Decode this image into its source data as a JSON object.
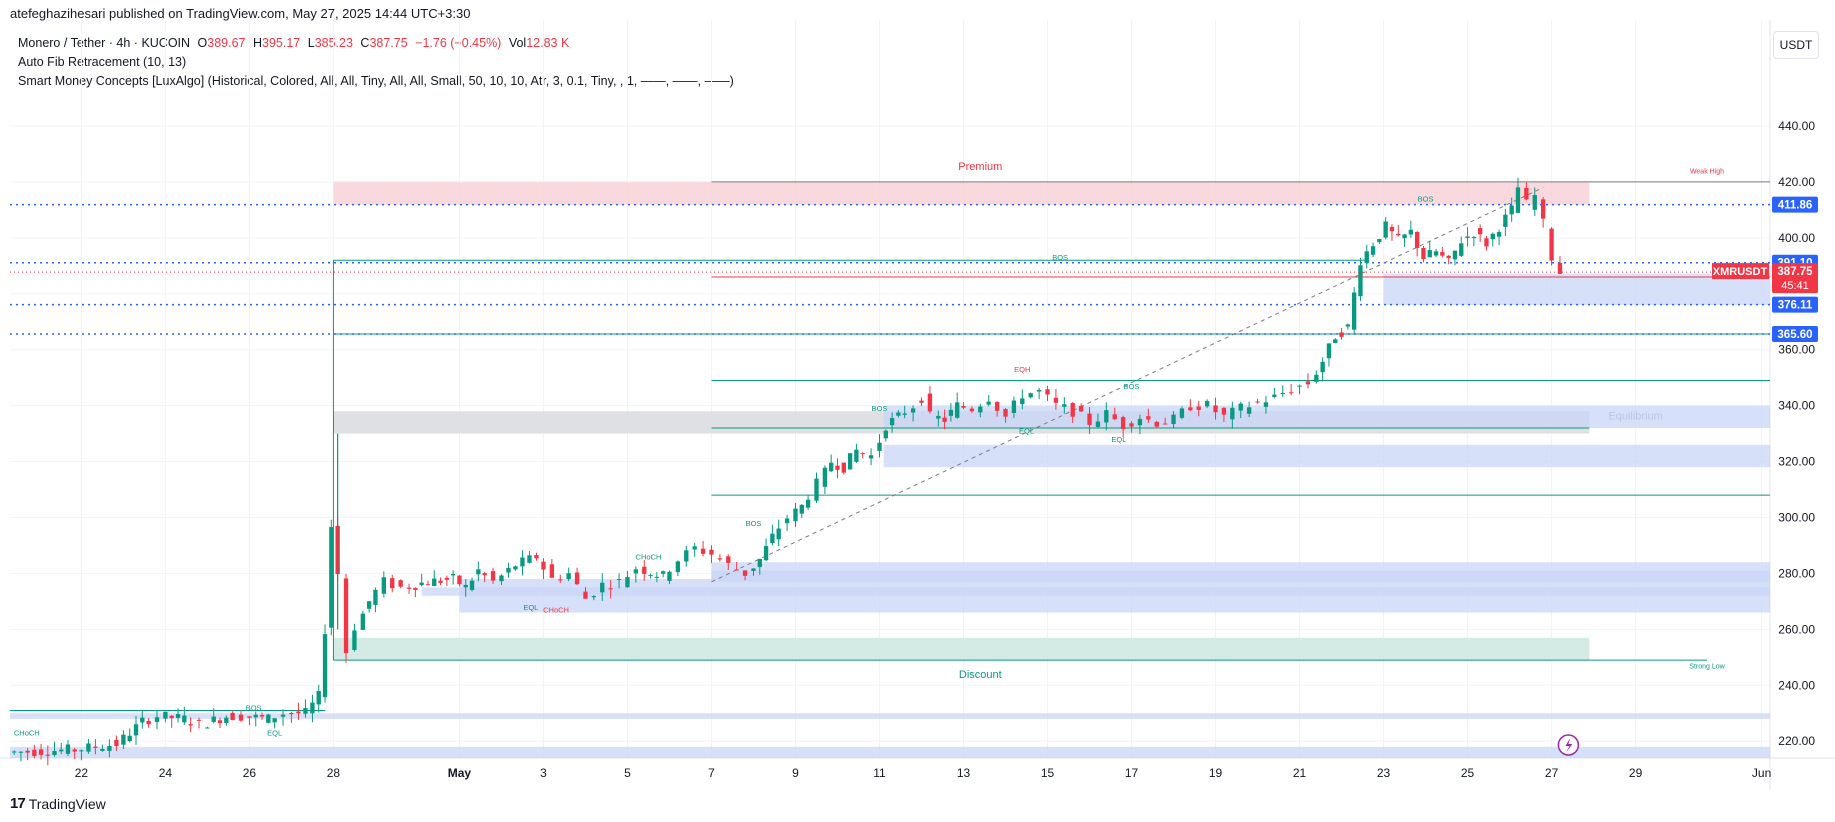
{
  "header": {
    "published": "atefeghazihesari published on TradingView.com, May 27, 2025 14:44 UTC+3:30"
  },
  "legend": {
    "symbol": "Monero / Tether · 4h · KUCOIN",
    "o_label": "O",
    "o_value": "389.67",
    "h_label": "H",
    "h_value": "395.17",
    "l_label": "L",
    "l_value": "385.23",
    "c_label": "C",
    "c_value": "387.75",
    "change": "−1.76 (−0.45%)",
    "vol_label": "Vol",
    "vol_value": "12.83 K",
    "indicator1": "Auto Fib Retracement (10, 13)",
    "indicator2": "Smart Money Concepts [LuxAlgo] (Historical, Colored, All, All, Tiny, All, All, Small, 50, 10, 10, Atr, 3, 0.1, Tiny, , 1, ——, ——, ——)"
  },
  "currency_button": "USDT",
  "footer": {
    "brand": "TradingView",
    "mark": "17"
  },
  "colors": {
    "up": "#089981",
    "down": "#f23645",
    "blue": "#2962ff",
    "premium": "#f8d0d6",
    "discount": "#cfe9e2",
    "equilibrium": "#dcdde1",
    "ob_blue": "#c9d6f7"
  },
  "chart_data": {
    "type": "candlestick",
    "symbol": "XMRUSDT",
    "interval": "4h",
    "y_ticks": [
      220,
      240,
      260,
      280,
      300,
      320,
      340,
      360,
      380,
      400,
      420,
      440
    ],
    "ylim": [
      214,
      450
    ],
    "x_ticks": [
      "22",
      "24",
      "26",
      "28",
      "May",
      "3",
      "5",
      "7",
      "9",
      "11",
      "13",
      "15",
      "17",
      "19",
      "21",
      "23",
      "25",
      "27",
      "29",
      "Jun"
    ],
    "x_tick_days": [
      -9,
      -7,
      -5,
      -3,
      0,
      2,
      4,
      6,
      8,
      10,
      12,
      14,
      16,
      18,
      20,
      22,
      24,
      26,
      28,
      31
    ],
    "xlim_days": [
      -10.7,
      31.2
    ],
    "last_day": 26.4,
    "close_path": [
      [
        -10.6,
        216
      ],
      [
        -9.0,
        217
      ],
      [
        -8.0,
        219
      ],
      [
        -7.4,
        227
      ],
      [
        -7.0,
        229
      ],
      [
        -6.4,
        228
      ],
      [
        -6.0,
        226
      ],
      [
        -5.4,
        229
      ],
      [
        -5.0,
        229
      ],
      [
        -4.4,
        228
      ],
      [
        -4.0,
        230
      ],
      [
        -3.5,
        230
      ],
      [
        -3.2,
        236
      ],
      [
        -3.05,
        260
      ],
      [
        -2.9,
        297
      ],
      [
        -2.7,
        280
      ],
      [
        -2.5,
        252
      ],
      [
        -2.3,
        261
      ],
      [
        -2.0,
        270
      ],
      [
        -1.6,
        277
      ],
      [
        -1.2,
        275
      ],
      [
        -0.6,
        277
      ],
      [
        0.0,
        278
      ],
      [
        0.3,
        275
      ],
      [
        0.6,
        281
      ],
      [
        1.0,
        277
      ],
      [
        1.5,
        283
      ],
      [
        2.0,
        286
      ],
      [
        2.4,
        278
      ],
      [
        2.8,
        280
      ],
      [
        3.2,
        271
      ],
      [
        3.6,
        276
      ],
      [
        4.0,
        277
      ],
      [
        4.4,
        282
      ],
      [
        5.0,
        279
      ],
      [
        5.4,
        285
      ],
      [
        5.8,
        289
      ],
      [
        6.2,
        287
      ],
      [
        6.6,
        283
      ],
      [
        7.0,
        280
      ],
      [
        7.3,
        285
      ],
      [
        7.6,
        293
      ],
      [
        8.0,
        300
      ],
      [
        8.3,
        304
      ],
      [
        8.7,
        312
      ],
      [
        9.0,
        320
      ],
      [
        9.3,
        318
      ],
      [
        9.6,
        324
      ],
      [
        10.0,
        322
      ],
      [
        10.3,
        333
      ],
      [
        10.6,
        336
      ],
      [
        11.0,
        340
      ],
      [
        11.2,
        343
      ],
      [
        11.4,
        336
      ],
      [
        11.7,
        335
      ],
      [
        12.0,
        340
      ],
      [
        12.4,
        339
      ],
      [
        12.8,
        343
      ],
      [
        13.2,
        336
      ],
      [
        13.6,
        344
      ],
      [
        14.0,
        345
      ],
      [
        14.4,
        340
      ],
      [
        14.8,
        338
      ],
      [
        15.2,
        334
      ],
      [
        15.6,
        337
      ],
      [
        16.0,
        333
      ],
      [
        16.4,
        336
      ],
      [
        16.8,
        334
      ],
      [
        17.2,
        335
      ],
      [
        17.6,
        340
      ],
      [
        18.0,
        340
      ],
      [
        18.4,
        336
      ],
      [
        18.8,
        339
      ],
      [
        19.2,
        341
      ],
      [
        19.6,
        343
      ],
      [
        20.0,
        346
      ],
      [
        20.4,
        348
      ],
      [
        20.7,
        356
      ],
      [
        21.0,
        365
      ],
      [
        21.3,
        368
      ],
      [
        21.6,
        392
      ],
      [
        21.9,
        398
      ],
      [
        22.2,
        404
      ],
      [
        22.5,
        399
      ],
      [
        22.8,
        402
      ],
      [
        23.1,
        393
      ],
      [
        23.4,
        395
      ],
      [
        23.7,
        391
      ],
      [
        24.0,
        399
      ],
      [
        24.3,
        402
      ],
      [
        24.6,
        398
      ],
      [
        24.9,
        404
      ],
      [
        25.2,
        410
      ],
      [
        25.4,
        418
      ],
      [
        25.6,
        412
      ],
      [
        25.8,
        415
      ],
      [
        26.0,
        405
      ],
      [
        26.2,
        393
      ],
      [
        26.4,
        387.75
      ]
    ],
    "horizontal_levels": [
      {
        "price": 411.86,
        "label": "411.86"
      },
      {
        "price": 391.1,
        "label": "391.10"
      },
      {
        "price": 376.11,
        "label": "376.11"
      },
      {
        "price": 365.6,
        "label": "365.60"
      }
    ],
    "last_price_tag": {
      "symbol": "XMRUSDT",
      "price": "387.75",
      "countdown": "45:41"
    },
    "zones": {
      "premium": {
        "label": "Premium",
        "from_day": -3,
        "to_day": 26.9,
        "low": 411.86,
        "high": 420
      },
      "equilibrium": {
        "label": "Equilibrium",
        "from_day": -3,
        "to_day": 26.9,
        "low": 330,
        "high": 338
      },
      "discount": {
        "label": "Discount",
        "from_day": -3,
        "to_day": 26.9,
        "low": 249,
        "high": 257
      }
    },
    "structure_labels": [
      {
        "text": "BOS",
        "day": 7.0,
        "price": 297,
        "color": "up"
      },
      {
        "text": "BOS",
        "day": 14.3,
        "price": 392,
        "color": "up"
      },
      {
        "text": "BOS",
        "day": -4.9,
        "price": 231,
        "color": "up"
      },
      {
        "text": "BOS",
        "day": 23.0,
        "price": 413,
        "color": "up"
      },
      {
        "text": "BOS",
        "day": 10.0,
        "price": 338,
        "color": "up"
      },
      {
        "text": "BOS",
        "day": 16.0,
        "price": 346,
        "color": "up"
      },
      {
        "text": "CHoCH",
        "day": -10.3,
        "price": 222,
        "color": "up"
      },
      {
        "text": "CHoCH",
        "day": 4.5,
        "price": 285,
        "color": "up"
      },
      {
        "text": "CHoCH",
        "day": 2.3,
        "price": 266,
        "color": "down"
      },
      {
        "text": "EQL",
        "day": -4.4,
        "price": 222,
        "color": "up"
      },
      {
        "text": "EQL",
        "day": 1.7,
        "price": 267,
        "color": "up"
      },
      {
        "text": "EQL",
        "day": 13.5,
        "price": 330,
        "color": "up"
      },
      {
        "text": "EQL",
        "day": 15.7,
        "price": 327,
        "color": "up"
      },
      {
        "text": "EQH",
        "day": 13.4,
        "price": 352,
        "color": "down"
      },
      {
        "text": "Weak High",
        "day": 29.7,
        "price": 423,
        "color": "down"
      },
      {
        "text": "Strong Low",
        "day": 29.7,
        "price": 246,
        "color": "up"
      }
    ]
  }
}
